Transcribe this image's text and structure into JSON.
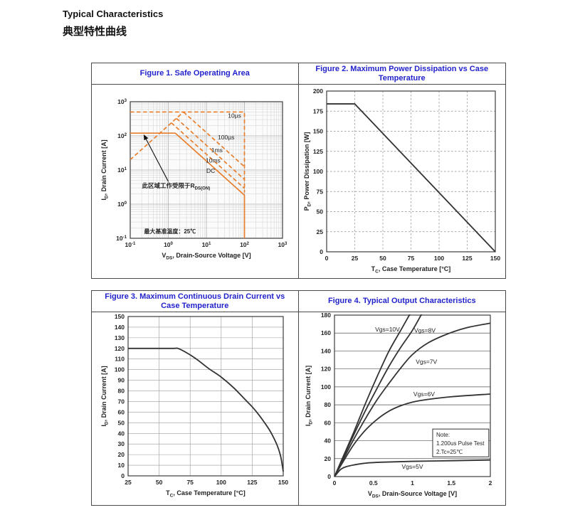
{
  "page": {
    "title_en": "Typical Characteristics",
    "title_zh": "典型特性曲线"
  },
  "colors": {
    "figure_title_blue": "#2323CC",
    "soa_orange": "#E87E2B",
    "curve_dark": "#333333"
  },
  "chart_data": [
    {
      "id": "fig1",
      "type": "line",
      "title": "Figure 1. Safe Operating Area",
      "xlabel": "V~DS~, Drain-Source Voltage [V]",
      "ylabel": "I~D~, Drain Current [A]",
      "xscale": "log",
      "yscale": "log",
      "xlim": [
        0.1,
        1000
      ],
      "ylim": [
        0.1,
        1000
      ],
      "xticks": [
        0.1,
        1,
        10,
        100,
        1000
      ],
      "yticks": [
        0.1,
        1,
        10,
        100,
        1000
      ],
      "line_color": "#E87E2B",
      "series": [
        {
          "name": "10us-peak-current-limit",
          "dash": true,
          "points": [
            [
              0.1,
              500
            ],
            [
              100,
              500
            ],
            [
              100,
              2.2
            ]
          ]
        },
        {
          "name": "rdson-limit-line",
          "dash": true,
          "points": [
            [
              0.1,
              20
            ],
            [
              2.5,
              500
            ]
          ]
        },
        {
          "name": "100us",
          "dash": true,
          "points": [
            [
              2.5,
              500
            ],
            [
              100,
              12.5
            ]
          ]
        },
        {
          "name": "1ms",
          "dash": true,
          "points": [
            [
              1.63,
              326
            ],
            [
              100,
              5.3
            ]
          ]
        },
        {
          "name": "10ms",
          "dash": true,
          "points": [
            [
              1.2,
              241
            ],
            [
              100,
              2.9
            ]
          ]
        },
        {
          "name": "DC",
          "dash": false,
          "points": [
            [
              0.1,
              120
            ],
            [
              1.53,
              120
            ],
            [
              100,
              1.83
            ],
            [
              100,
              0.1
            ]
          ]
        }
      ],
      "curve_labels": [
        {
          "text": "10µs",
          "x": 55,
          "y": 390
        },
        {
          "text": "100µs",
          "x": 33,
          "y": 91
        },
        {
          "text": "1ms",
          "x": 19,
          "y": 38
        },
        {
          "text": "10ms",
          "x": 15,
          "y": 19
        },
        {
          "text": "DC",
          "x": 13,
          "y": 9.5
        }
      ],
      "annotation": {
        "text": "此区域工作受限于R~DS(ON)~",
        "x": 1.6,
        "y": 3.5,
        "arrow_from": [
          1.0,
          4.6
        ],
        "arrow_to": [
          0.23,
          105
        ]
      },
      "note": "最大基准温度：25℃"
    },
    {
      "id": "fig2",
      "type": "line",
      "title": "Figure 2. Maximum Power Dissipation vs Case Temperature",
      "xlabel": "T~C~, Case Temperature [°C]",
      "ylabel": "P~D~, Power Dissipation [W]",
      "xlim": [
        0,
        150
      ],
      "ylim": [
        0,
        200
      ],
      "xticks": [
        0,
        25,
        50,
        75,
        100,
        125,
        150
      ],
      "yticks": [
        0,
        25,
        50,
        75,
        100,
        125,
        150,
        175,
        200
      ],
      "grid": "dashed",
      "line_color": "#333333",
      "series": [
        {
          "name": "max-power-dissipation",
          "dash": false,
          "points": [
            [
              0,
              184
            ],
            [
              25,
              184
            ],
            [
              150,
              0
            ]
          ]
        }
      ]
    },
    {
      "id": "fig3",
      "type": "line",
      "title": "Figure 3. Maximum Continuous Drain Current vs Case Temperature",
      "xlabel": "T~C~, Case Temperature [°C]",
      "ylabel": "I~D~, Drain Current [A]",
      "xlim": [
        25,
        150
      ],
      "ylim": [
        0,
        150
      ],
      "xticks": [
        25,
        50,
        75,
        100,
        125,
        150
      ],
      "yticks": [
        0,
        10,
        20,
        30,
        40,
        50,
        60,
        70,
        80,
        90,
        100,
        110,
        120,
        130,
        140,
        150
      ],
      "grid": "solid",
      "line_color": "#333333",
      "series": [
        {
          "name": "max-continuous-drain-current",
          "dash": false,
          "smooth": true,
          "points": [
            [
              25,
              120
            ],
            [
              60,
              120
            ],
            [
              65,
              120
            ],
            [
              72,
              116
            ],
            [
              80,
              110
            ],
            [
              90,
              101
            ],
            [
              100,
              93
            ],
            [
              110,
              83
            ],
            [
              120,
              71
            ],
            [
              125,
              65
            ],
            [
              130,
              58
            ],
            [
              135,
              50
            ],
            [
              140,
              41
            ],
            [
              145,
              29
            ],
            [
              148,
              18
            ],
            [
              150,
              4
            ]
          ]
        }
      ]
    },
    {
      "id": "fig4",
      "type": "line",
      "title": "Figure 4. Typical Output Characteristics",
      "xlabel": "V~DS~, Drain-Source Voltage [V]",
      "ylabel": "I~D~, Drain Current [A]",
      "xlim": [
        0,
        2
      ],
      "ylim": [
        0,
        180
      ],
      "xticks": [
        0,
        0.5,
        1,
        1.5,
        2
      ],
      "yticks": [
        0,
        20,
        40,
        60,
        80,
        100,
        120,
        140,
        160,
        180
      ],
      "grid": "h",
      "line_color": "#333333",
      "series": [
        {
          "name": "Vgs=10V",
          "dash": false,
          "smooth": true,
          "points": [
            [
              0,
              0
            ],
            [
              0.1,
              20
            ],
            [
              0.25,
              50
            ],
            [
              0.4,
              82
            ],
            [
              0.55,
              112
            ],
            [
              0.7,
              140
            ],
            [
              0.85,
              163
            ],
            [
              0.98,
              183
            ]
          ]
        },
        {
          "name": "Vgs=8V",
          "dash": false,
          "smooth": true,
          "points": [
            [
              0,
              0
            ],
            [
              0.1,
              19
            ],
            [
              0.25,
              47
            ],
            [
              0.4,
              74
            ],
            [
              0.55,
              99
            ],
            [
              0.7,
              123
            ],
            [
              0.85,
              144
            ],
            [
              1.0,
              163
            ],
            [
              1.13,
              183
            ]
          ]
        },
        {
          "name": "Vgs=7V",
          "dash": false,
          "smooth": true,
          "points": [
            [
              0,
              0
            ],
            [
              0.1,
              17
            ],
            [
              0.25,
              42
            ],
            [
              0.4,
              65
            ],
            [
              0.55,
              86
            ],
            [
              0.7,
              104
            ],
            [
              0.85,
              121
            ],
            [
              1.0,
              136
            ],
            [
              1.2,
              149
            ],
            [
              1.45,
              159
            ],
            [
              1.7,
              166
            ],
            [
              2,
              171
            ]
          ]
        },
        {
          "name": "Vgs=6V",
          "dash": false,
          "smooth": true,
          "points": [
            [
              0,
              0
            ],
            [
              0.1,
              15
            ],
            [
              0.25,
              36
            ],
            [
              0.4,
              52
            ],
            [
              0.55,
              64
            ],
            [
              0.7,
              73
            ],
            [
              0.85,
              79
            ],
            [
              1.0,
              83
            ],
            [
              1.2,
              86
            ],
            [
              1.5,
              89
            ],
            [
              2,
              92
            ]
          ]
        },
        {
          "name": "Vgs=5V",
          "dash": false,
          "smooth": true,
          "points": [
            [
              0,
              0
            ],
            [
              0.08,
              8
            ],
            [
              0.15,
              11
            ],
            [
              0.25,
              13
            ],
            [
              0.4,
              15
            ],
            [
              0.6,
              16
            ],
            [
              1.0,
              17
            ],
            [
              1.5,
              17.7
            ],
            [
              2,
              18.5
            ]
          ]
        }
      ],
      "curve_labels": [
        {
          "text": "Vgs=10V",
          "x": 0.68,
          "y": 164
        },
        {
          "text": "Vgs=8V",
          "x": 1.16,
          "y": 163
        },
        {
          "text": "Vgs=7V",
          "x": 1.18,
          "y": 128
        },
        {
          "text": "Vgs=6V",
          "x": 1.15,
          "y": 92
        },
        {
          "text": "Vgs=5V",
          "x": 1.0,
          "y": 11
        }
      ],
      "note_box": {
        "lines": [
          "Note:",
          "1.200us Pulse Test",
          "2.Tc=25℃"
        ],
        "x": [
          1.26,
          1.98
        ],
        "y": [
          22,
          53
        ]
      }
    }
  ]
}
